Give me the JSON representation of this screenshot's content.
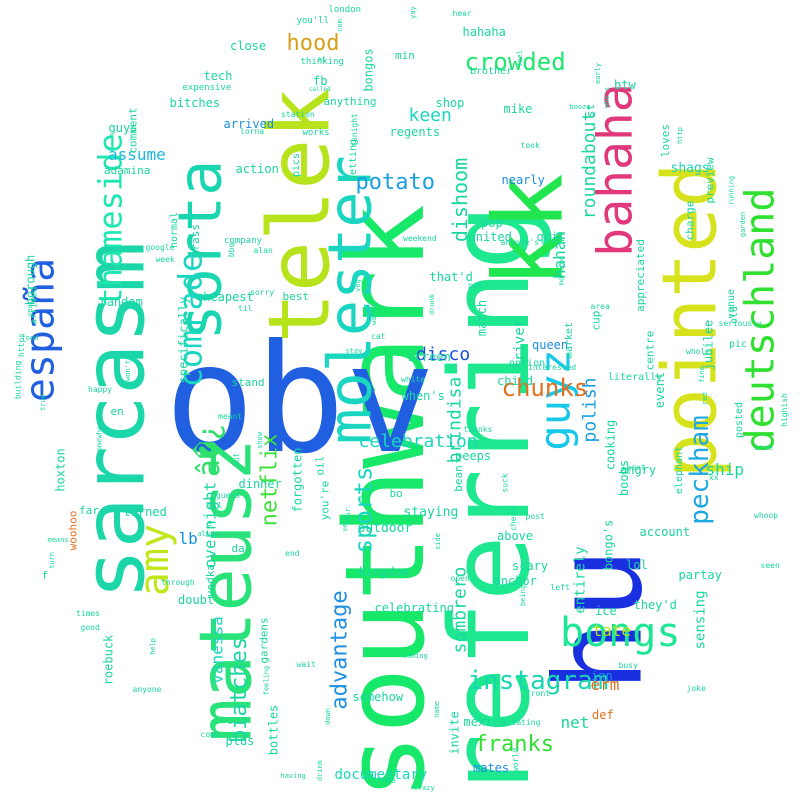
{
  "words": [
    {
      "text": "southwark",
      "color": "#18e86a"
    },
    {
      "text": "referring",
      "color": "#1de890"
    },
    {
      "text": "obv",
      "color": "#1f5fe0"
    },
    {
      "text": "hu",
      "color": "#1a2fe0"
    },
    {
      "text": "sarcasm",
      "color": "#1ad6a8"
    },
    {
      "text": "kk",
      "color": "#22e650"
    },
    {
      "text": "telek",
      "color": "#b6e31c"
    },
    {
      "text": "pointed",
      "color": "#d6e31c"
    },
    {
      "text": "mateusz",
      "color": "#2ae27a"
    },
    {
      "text": "molester",
      "color": "#1ad6c0"
    },
    {
      "text": "sorta",
      "color": "#1ad6b0"
    },
    {
      "text": "deutschland",
      "color": "#30e030"
    },
    {
      "text": "guyz",
      "color": "#18c8e8"
    },
    {
      "text": "bahaha",
      "color": "#e0387a"
    },
    {
      "text": "españa",
      "color": "#1f5fe0"
    },
    {
      "text": "thameside",
      "color": "#1ee6b0"
    },
    {
      "text": "amy",
      "color": "#c0e61c"
    },
    {
      "text": "â�¿",
      "color": "#2ee06a"
    },
    {
      "text": "comrade",
      "color": "#1ad6c0"
    },
    {
      "text": "bongs",
      "color": "#1ee696"
    },
    {
      "text": "peckham",
      "color": "#1ea8e0"
    },
    {
      "text": "crowded",
      "color": "#1ee66e"
    },
    {
      "text": "instagram",
      "color": "#1ad6b0"
    },
    {
      "text": "hood",
      "color": "#d6a01c"
    },
    {
      "text": "chunks",
      "color": "#e07020"
    },
    {
      "text": "sports",
      "color": "#1ad6c0"
    },
    {
      "text": "advantage",
      "color": "#1f8fe0"
    },
    {
      "text": "potato",
      "color": "#1aa0e0"
    },
    {
      "text": "netflix",
      "color": "#3ee03a"
    },
    {
      "text": "biatches",
      "color": "#1ad6a0"
    },
    {
      "text": "celebration",
      "color": "#1ad6c0"
    },
    {
      "text": "franks",
      "color": "#30e030"
    },
    {
      "text": "dishoom",
      "color": "#1ad6a0"
    },
    {
      "text": "brindisa",
      "color": "#1ad6a0"
    },
    {
      "text": "sombrero",
      "color": "#1ad6a0"
    },
    {
      "text": "keen",
      "color": "#1ad6c0"
    },
    {
      "text": "roundabout",
      "color": "#1ad6a0"
    },
    {
      "text": "disco",
      "color": "#1a4fe0"
    },
    {
      "text": "polish",
      "color": "#1aa0e0"
    },
    {
      "text": "documentary",
      "color": "#1ad6c0"
    },
    {
      "text": "vanessa",
      "color": "#1ad6c0"
    },
    {
      "text": "overnight",
      "color": "#1ad6a0"
    },
    {
      "text": "assume",
      "color": "#1ab8e0"
    },
    {
      "text": "lb",
      "color": "#1a8fe0"
    },
    {
      "text": "erm",
      "color": "#e07020"
    },
    {
      "text": "tate",
      "color": "#b6e31c"
    },
    {
      "text": "net",
      "color": "#1ad6a0"
    },
    {
      "text": "ship",
      "color": "#1ad6a0"
    },
    {
      "text": "sensing",
      "color": "#1ad6a0"
    },
    {
      "text": "entirely",
      "color": "#1ad6a0"
    },
    {
      "text": "river",
      "color": "#1ad6a0"
    },
    {
      "text": "queen",
      "color": "#1a8fe0"
    },
    {
      "text": "hahah",
      "color": "#1ad6a0"
    },
    {
      "text": "jubilee",
      "color": "#1ad6a0"
    },
    {
      "text": "kingdom",
      "color": "#1ad6a0"
    },
    {
      "text": "staying",
      "color": "#1ad6a0"
    },
    {
      "text": "outdoor",
      "color": "#1ad6a0"
    },
    {
      "text": "shags",
      "color": "#1ad6c0"
    },
    {
      "text": "mates",
      "color": "#1a8fe0"
    },
    {
      "text": "invite",
      "color": "#1ad6a0"
    },
    {
      "text": "mexico",
      "color": "#1ad6a0"
    },
    {
      "text": "inn",
      "color": "#1a8fe0"
    },
    {
      "text": "def",
      "color": "#e07020"
    },
    {
      "text": "forgotten",
      "color": "#1ad6a0"
    },
    {
      "text": "specifically",
      "color": "#1ad6a0"
    },
    {
      "text": "cheapest",
      "color": "#1ad6a0"
    },
    {
      "text": "random",
      "color": "#1ad6a0"
    },
    {
      "text": "dinner",
      "color": "#1ad6a0"
    },
    {
      "text": "turned",
      "color": "#1ad6a0"
    },
    {
      "text": "gardens",
      "color": "#1ad6a0"
    },
    {
      "text": "bottles",
      "color": "#1ad6a0"
    },
    {
      "text": "celebrating",
      "color": "#1ad6a0"
    },
    {
      "text": "anchor",
      "color": "#1ad6a0"
    },
    {
      "text": "scary",
      "color": "#1ad6a0"
    },
    {
      "text": "above",
      "color": "#1ad6a0"
    },
    {
      "text": "doubt",
      "color": "#1ad6a0"
    },
    {
      "text": "somehow",
      "color": "#1ad6a0"
    },
    {
      "text": "plus",
      "color": "#1ad6a0"
    },
    {
      "text": "roebuck",
      "color": "#1ad6a0"
    },
    {
      "text": "borough",
      "color": "#1ad6a0"
    },
    {
      "text": "hoxton",
      "color": "#1ad6a0"
    },
    {
      "text": "woohoo",
      "color": "#e07020"
    },
    {
      "text": "action",
      "color": "#1ad6a0"
    },
    {
      "text": "adamina",
      "color": "#1ad6a0"
    },
    {
      "text": "guys",
      "color": "#1ad6a0"
    },
    {
      "text": "bitches",
      "color": "#1ad6a0"
    },
    {
      "text": "tech",
      "color": "#1ad6a0"
    },
    {
      "text": "close",
      "color": "#1ad6a0"
    },
    {
      "text": "fb",
      "color": "#1ad6a0"
    },
    {
      "text": "arrived",
      "color": "#1a8fe0"
    },
    {
      "text": "bongos",
      "color": "#1ad6a0"
    },
    {
      "text": "hahaha",
      "color": "#1ad6a0"
    },
    {
      "text": "shop",
      "color": "#1ad6a0"
    },
    {
      "text": "regents",
      "color": "#1ad6a0"
    },
    {
      "text": "mike",
      "color": "#1ad6a0"
    },
    {
      "text": "nearly",
      "color": "#1a8fe0"
    },
    {
      "text": "united",
      "color": "#1ad6a0"
    },
    {
      "text": "pop",
      "color": "#1ad6a0"
    },
    {
      "text": "quit",
      "color": "#1ad6a0"
    },
    {
      "text": "that'd",
      "color": "#1ad6a0"
    },
    {
      "text": "match",
      "color": "#1ad6a0"
    },
    {
      "text": "screen",
      "color": "#1ad6a0"
    },
    {
      "text": "when's",
      "color": "#1ad6a0"
    },
    {
      "text": "child",
      "color": "#1ad6a0"
    },
    {
      "text": "peeps",
      "color": "#1ad6a0"
    },
    {
      "text": "cooking",
      "color": "#1ad6a0"
    },
    {
      "text": "boobs",
      "color": "#1ad6a0"
    },
    {
      "text": "angry",
      "color": "#1ad6a0"
    },
    {
      "text": "they'd",
      "color": "#1ad6a0"
    },
    {
      "text": "lol",
      "color": "#1ad6a0"
    },
    {
      "text": "ice",
      "color": "#1ad6a0"
    },
    {
      "text": "bongo's",
      "color": "#1ad6a0"
    },
    {
      "text": "account",
      "color": "#1ad6a0"
    },
    {
      "text": "event",
      "color": "#1ad6a0"
    },
    {
      "text": "partay",
      "color": "#1ad6a0"
    },
    {
      "text": "centre",
      "color": "#1ad6a0"
    },
    {
      "text": "appreciated",
      "color": "#1ad6a0"
    },
    {
      "text": "preview",
      "color": "#1ad6a0"
    },
    {
      "text": "charge",
      "color": "#1ad6a0"
    },
    {
      "text": "loves",
      "color": "#1ad6a0"
    },
    {
      "text": "cup",
      "color": "#1ad6a0"
    },
    {
      "text": "st",
      "color": "#1ad6a0"
    },
    {
      "text": "min",
      "color": "#1ad6a0"
    },
    {
      "text": "best",
      "color": "#1ad6a0"
    },
    {
      "text": "stand",
      "color": "#1ad6a0"
    },
    {
      "text": "grass",
      "color": "#1ad6a0"
    },
    {
      "text": "oil",
      "color": "#1ad6a0"
    },
    {
      "text": "you're",
      "color": "#1ad6a0"
    },
    {
      "text": "bo",
      "color": "#1ad6a0"
    },
    {
      "text": "bean",
      "color": "#1ad6a0"
    },
    {
      "text": "vodka",
      "color": "#1ad6a0"
    },
    {
      "text": "da",
      "color": "#1ad6a0"
    },
    {
      "text": "en",
      "color": "#1ad6a0"
    },
    {
      "text": "far",
      "color": "#1ad6a0"
    },
    {
      "text": "comment",
      "color": "#1ad6a0"
    },
    {
      "text": "anything",
      "color": "#1ad6a0"
    },
    {
      "text": "getting",
      "color": "#1ad6a0"
    },
    {
      "text": "normal",
      "color": "#1ad6a0"
    },
    {
      "text": "pics",
      "color": "#1ad6a0"
    },
    {
      "text": "works",
      "color": "#1ad6a0"
    },
    {
      "text": "venue",
      "color": "#1ad6a0"
    },
    {
      "text": "old",
      "color": "#1ad6a0"
    },
    {
      "text": "pic",
      "color": "#1ad6a0"
    },
    {
      "text": "posted",
      "color": "#1ad6a0"
    },
    {
      "text": "elephant",
      "color": "#1ad6a0"
    },
    {
      "text": "literally",
      "color": "#1ad6a0"
    },
    {
      "text": "market",
      "color": "#1ad6a0"
    },
    {
      "text": "option",
      "color": "#1ad6a0"
    },
    {
      "text": "brother",
      "color": "#1ad6a0"
    },
    {
      "text": "london",
      "color": "#1ad6a0"
    },
    {
      "text": "you'll",
      "color": "#1ad6a0"
    },
    {
      "text": "expensive",
      "color": "#1ad6a0"
    },
    {
      "text": "thinking",
      "color": "#1ad6a0"
    },
    {
      "text": "arrived",
      "color": "#1ad6a0"
    },
    {
      "text": "https",
      "color": "#1ad6a0"
    },
    {
      "text": "building",
      "color": "#1ad6a0"
    },
    {
      "text": "happy",
      "color": "#1ad6a0"
    },
    {
      "text": "meant",
      "color": "#1ad6a0"
    },
    {
      "text": "show",
      "color": "#1ad6a0"
    },
    {
      "text": "company",
      "color": "#1ad6a0"
    },
    {
      "text": "alan",
      "color": "#1ad6a0"
    },
    {
      "text": "sorry",
      "color": "#1ad6a0"
    },
    {
      "text": "til",
      "color": "#1ad6a0"
    },
    {
      "text": "google",
      "color": "#1ad6a0"
    },
    {
      "text": "week",
      "color": "#1ad6a0"
    },
    {
      "text": "bbq",
      "color": "#1ad6a0"
    },
    {
      "text": "station",
      "color": "#1ad6a0"
    },
    {
      "text": "lorna",
      "color": "#1ad6a0"
    },
    {
      "text": "tonight",
      "color": "#1ad6a0"
    },
    {
      "text": "took",
      "color": "#1ad6a0"
    },
    {
      "text": "anyone's",
      "color": "#1ad6a0"
    },
    {
      "text": "weekend",
      "color": "#1ad6a0"
    },
    {
      "text": "pub",
      "color": "#1ad6a0"
    },
    {
      "text": "area",
      "color": "#1ad6a0"
    },
    {
      "text": "seriously",
      "color": "#1ad6a0"
    },
    {
      "text": "whole",
      "color": "#1ad6a0"
    },
    {
      "text": "highish",
      "color": "#1ad6a0"
    },
    {
      "text": "love",
      "color": "#1ad6a0"
    },
    {
      "text": "whoop",
      "color": "#1ad6a0"
    },
    {
      "text": "seen",
      "color": "#1ad6a0"
    },
    {
      "text": "joke",
      "color": "#1ad6a0"
    },
    {
      "text": "busy",
      "color": "#1ad6a0"
    },
    {
      "text": "front",
      "color": "#1ad6a0"
    },
    {
      "text": "eating",
      "color": "#1ad6a0"
    },
    {
      "text": "world",
      "color": "#1ad6a0"
    },
    {
      "text": "free",
      "color": "#1ad6a0"
    },
    {
      "text": "crazy",
      "color": "#1ad6a0"
    },
    {
      "text": "having",
      "color": "#1ad6a0"
    },
    {
      "text": "drink",
      "color": "#1ad6a0"
    },
    {
      "text": "wait",
      "color": "#1ad6a0"
    },
    {
      "text": "feeling",
      "color": "#1ad6a0"
    },
    {
      "text": "anyone",
      "color": "#1ad6a0"
    },
    {
      "text": "come",
      "color": "#1ad6a0"
    },
    {
      "text": "good",
      "color": "#1ad6a0"
    },
    {
      "text": "times",
      "color": "#1ad6a0"
    },
    {
      "text": "help",
      "color": "#1ad6a0"
    },
    {
      "text": "through",
      "color": "#1ad6a0"
    },
    {
      "text": "end",
      "color": "#1ad6a0"
    },
    {
      "text": "always",
      "color": "#1ad6a0"
    },
    {
      "text": "guess",
      "color": "#1ad6a0"
    },
    {
      "text": "out",
      "color": "#1ad6a0"
    },
    {
      "text": "open",
      "color": "#1ad6a0"
    },
    {
      "text": "left",
      "color": "#1ad6a0"
    },
    {
      "text": "being",
      "color": "#1ad6a0"
    },
    {
      "text": "post",
      "color": "#1ad6a0"
    },
    {
      "text": "check",
      "color": "#1ad6a0"
    },
    {
      "text": "suck",
      "color": "#1ad6a0"
    },
    {
      "text": "thanks",
      "color": "#1ad6a0"
    },
    {
      "text": "white",
      "color": "#1ad6a0"
    },
    {
      "text": "interested",
      "color": "#1ad6a0"
    },
    {
      "text": "next",
      "color": "#1ad6a0"
    },
    {
      "text": "wanna",
      "color": "#1ad6a0"
    },
    {
      "text": "stay",
      "color": "#1ad6a0"
    },
    {
      "text": "cat",
      "color": "#1ad6a0"
    },
    {
      "text": "veg",
      "color": "#1ad6a0"
    },
    {
      "text": "morning",
      "color": "#1ad6a0"
    },
    {
      "text": "running",
      "color": "#1ad6a0"
    },
    {
      "text": "garden",
      "color": "#1ad6a0"
    },
    {
      "text": "http",
      "color": "#1ad6a0"
    },
    {
      "text": "who's",
      "color": "#1ad6a0"
    },
    {
      "text": "early",
      "color": "#1ad6a0"
    },
    {
      "text": "booze",
      "color": "#1ad6a0"
    },
    {
      "text": "hear",
      "color": "#1ad6a0"
    },
    {
      "text": "feel",
      "color": "#1ad6a0"
    },
    {
      "text": "com",
      "color": "#1ad6a0"
    },
    {
      "text": "called",
      "color": "#1ad6a0"
    },
    {
      "text": "food",
      "color": "#1ad6a0"
    },
    {
      "text": "year",
      "color": "#1ad6a0"
    },
    {
      "text": "won't",
      "color": "#1ad6a0"
    },
    {
      "text": "true",
      "color": "#1ad6a0"
    },
    {
      "text": "somewhere",
      "color": "#1ad6a0"
    },
    {
      "text": "means",
      "color": "#1ad6a0"
    },
    {
      "text": "turn",
      "color": "#1ad6a0"
    },
    {
      "text": "all",
      "color": "#1ad6a0"
    },
    {
      "text": "ha",
      "color": "#1ad6a0"
    },
    {
      "text": "very",
      "color": "#1ad6a0"
    },
    {
      "text": "hour",
      "color": "#1ad6a0"
    },
    {
      "text": "side",
      "color": "#1ad6a0"
    },
    {
      "text": "coming",
      "color": "#1ad6a0"
    },
    {
      "text": "name",
      "color": "#1ad6a0"
    },
    {
      "text": "down",
      "color": "#1ad6a0"
    },
    {
      "text": "drunk",
      "color": "#1ad6a0"
    },
    {
      "text": "yay",
      "color": "#1ad6a0"
    },
    {
      "text": "hl",
      "color": "#1ad6a0"
    },
    {
      "text": "xx",
      "color": "#1ad6a0"
    },
    {
      "text": "fine",
      "color": "#1ad6a0"
    },
    {
      "text": "red",
      "color": "#1ad6a0"
    },
    {
      "text": "btw",
      "color": "#1ad6a0"
    },
    {
      "text": "f",
      "color": "#1ad6a0"
    },
    {
      "text": "y",
      "color": "#1ad6a0"
    }
  ]
}
